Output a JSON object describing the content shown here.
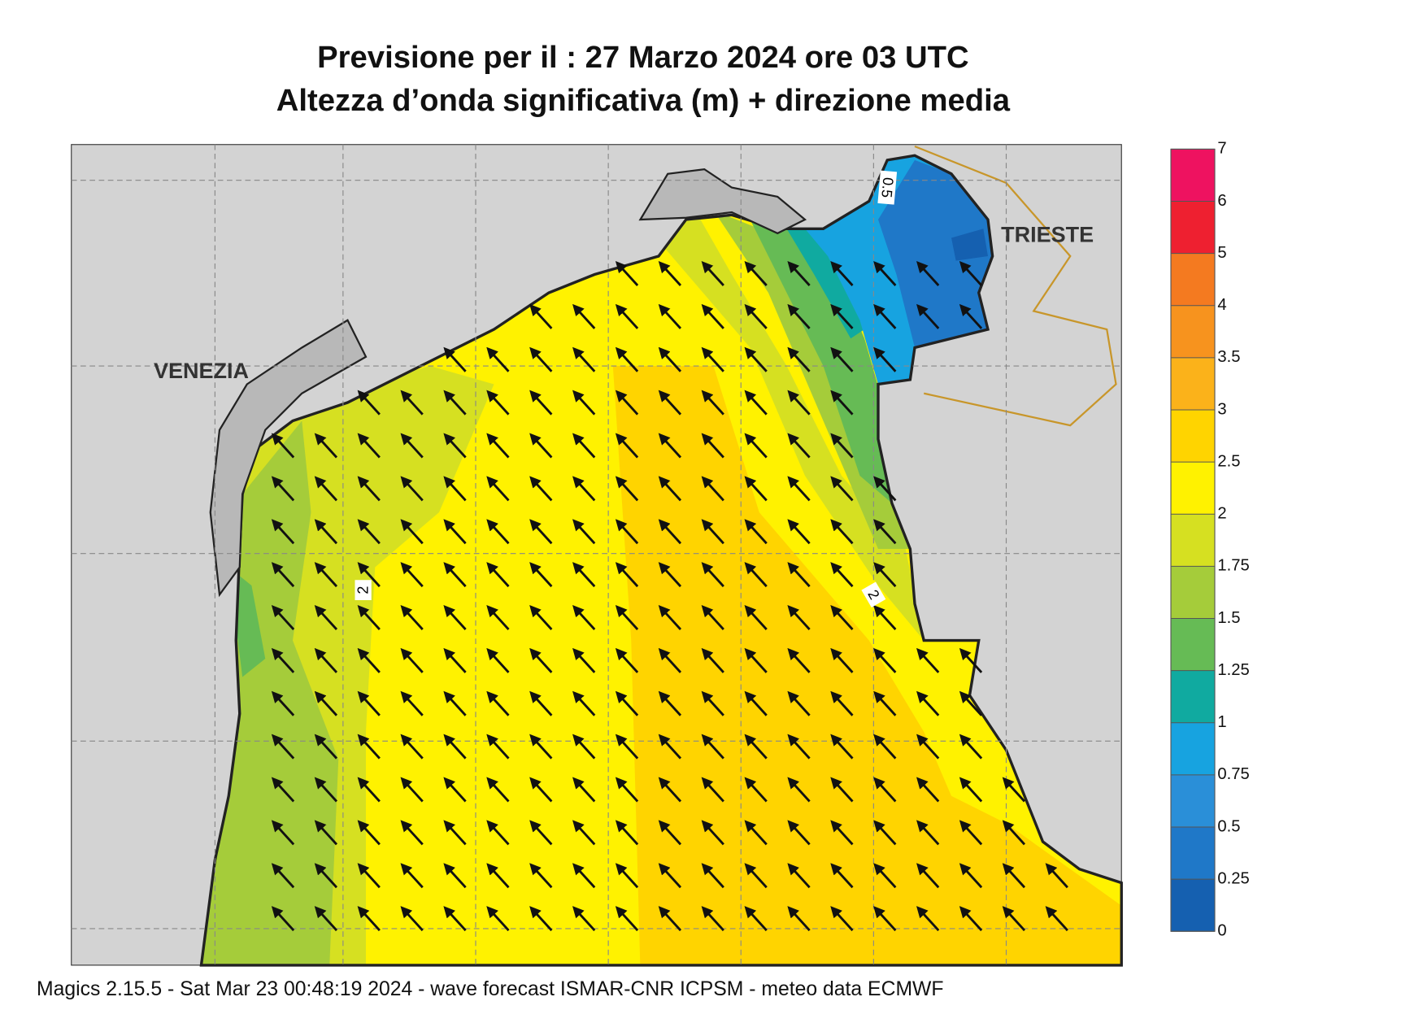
{
  "title": {
    "line1": "Previsione per il  :  27   Marzo   2024   ore 03 UTC",
    "line2": "Altezza d’onda significativa (m) + direzione media"
  },
  "map": {
    "places": [
      "VENEZIA",
      "TRIESTE"
    ],
    "contour_labels": [
      "2",
      "2",
      "0.5"
    ]
  },
  "legend": {
    "ticks": [
      0,
      0.25,
      0.5,
      0.75,
      1,
      1.25,
      1.5,
      1.75,
      2,
      2.5,
      3,
      3.5,
      4,
      5,
      6,
      7
    ],
    "colors": [
      "#1560b0",
      "#1f78c8",
      "#2a8fd8",
      "#17a3e0",
      "#10aaa0",
      "#66bb55",
      "#a5cc3a",
      "#d6e021",
      "#fff200",
      "#ffd400",
      "#fbb21a",
      "#f7931e",
      "#f47a20",
      "#ee2030",
      "#ee1260"
    ]
  },
  "footer": "Magics 2.15.5 - Sat Mar 23 00:48:19 2024 - wave forecast  ISMAR-CNR  ICPSM - meteo data   ECMWF"
}
